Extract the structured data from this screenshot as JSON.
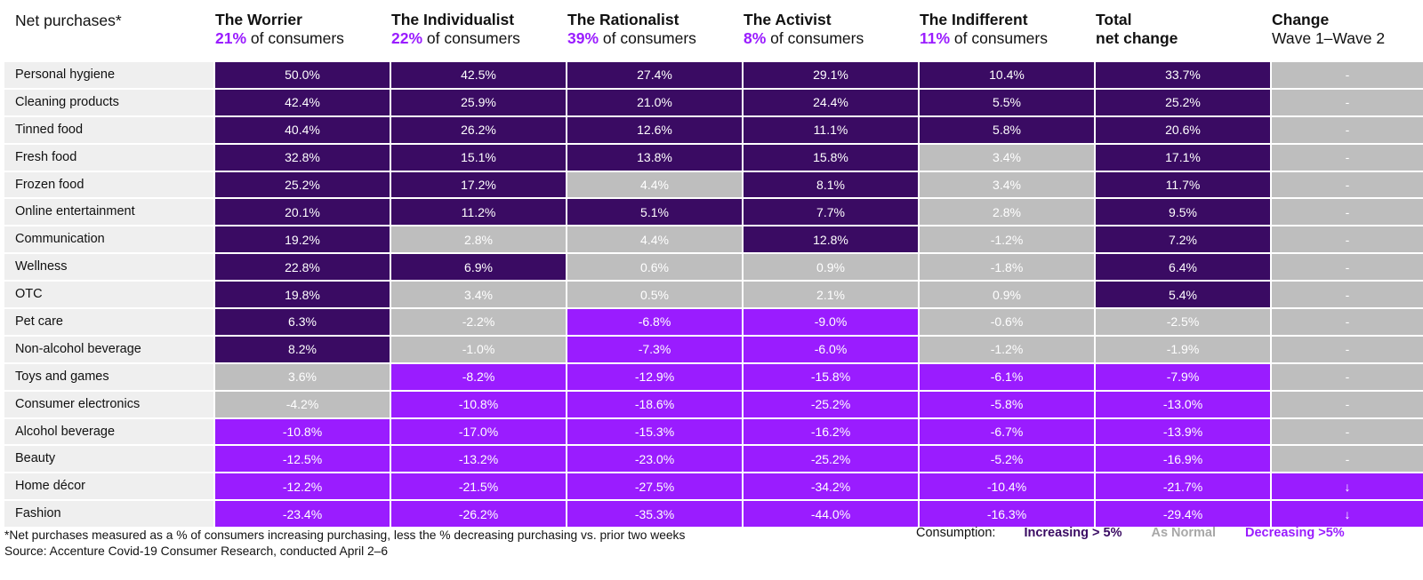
{
  "chart_data": {
    "type": "table",
    "row_header": "Net purchases*",
    "columns": [
      {
        "title": "The Worrier",
        "pct": "21%",
        "sub": " of consumers"
      },
      {
        "title": "The Individualist",
        "pct": "22%",
        "sub": " of consumers"
      },
      {
        "title": "The Rationalist",
        "pct": "39%",
        "sub": " of consumers"
      },
      {
        "title": "The Activist",
        "pct": "8%",
        "sub": " of consumers"
      },
      {
        "title": "The Indifferent",
        "pct": "11%",
        "sub": " of consumers"
      },
      {
        "title": "Total",
        "pct": "",
        "sub": "net change",
        "sub_bold": true
      },
      {
        "title": "Change",
        "pct": "",
        "sub": "Wave 1–Wave 2"
      }
    ],
    "rows": [
      {
        "label": "Personal hygiene",
        "values": [
          "50.0%",
          "42.5%",
          "27.4%",
          "29.1%",
          "10.4%",
          "33.7%",
          "-"
        ],
        "status": [
          "inc",
          "inc",
          "inc",
          "inc",
          "inc",
          "inc",
          "norm"
        ]
      },
      {
        "label": "Cleaning products",
        "values": [
          "42.4%",
          "25.9%",
          "21.0%",
          "24.4%",
          "5.5%",
          "25.2%",
          "-"
        ],
        "status": [
          "inc",
          "inc",
          "inc",
          "inc",
          "inc",
          "inc",
          "norm"
        ]
      },
      {
        "label": "Tinned food",
        "values": [
          "40.4%",
          "26.2%",
          "12.6%",
          "11.1%",
          "5.8%",
          "20.6%",
          "-"
        ],
        "status": [
          "inc",
          "inc",
          "inc",
          "inc",
          "inc",
          "inc",
          "norm"
        ]
      },
      {
        "label": "Fresh food",
        "values": [
          "32.8%",
          "15.1%",
          "13.8%",
          "15.8%",
          "3.4%",
          "17.1%",
          "-"
        ],
        "status": [
          "inc",
          "inc",
          "inc",
          "inc",
          "norm",
          "inc",
          "norm"
        ]
      },
      {
        "label": "Frozen food",
        "values": [
          "25.2%",
          "17.2%",
          "4.4%",
          "8.1%",
          "3.4%",
          "11.7%",
          "-"
        ],
        "status": [
          "inc",
          "inc",
          "norm",
          "inc",
          "norm",
          "inc",
          "norm"
        ]
      },
      {
        "label": "Online entertainment",
        "values": [
          "20.1%",
          "11.2%",
          "5.1%",
          "7.7%",
          "2.8%",
          "9.5%",
          "-"
        ],
        "status": [
          "inc",
          "inc",
          "inc",
          "inc",
          "norm",
          "inc",
          "norm"
        ]
      },
      {
        "label": "Communication",
        "values": [
          "19.2%",
          "2.8%",
          "4.4%",
          "12.8%",
          "-1.2%",
          "7.2%",
          "-"
        ],
        "status": [
          "inc",
          "norm",
          "norm",
          "inc",
          "norm",
          "inc",
          "norm"
        ]
      },
      {
        "label": "Wellness",
        "values": [
          "22.8%",
          "6.9%",
          "0.6%",
          "0.9%",
          "-1.8%",
          "6.4%",
          "-"
        ],
        "status": [
          "inc",
          "inc",
          "norm",
          "norm",
          "norm",
          "inc",
          "norm"
        ]
      },
      {
        "label": "OTC",
        "values": [
          "19.8%",
          "3.4%",
          "0.5%",
          "2.1%",
          "0.9%",
          "5.4%",
          "-"
        ],
        "status": [
          "inc",
          "norm",
          "norm",
          "norm",
          "norm",
          "inc",
          "norm"
        ]
      },
      {
        "label": "Pet care",
        "values": [
          "6.3%",
          "-2.2%",
          "-6.8%",
          "-9.0%",
          "-0.6%",
          "-2.5%",
          "-"
        ],
        "status": [
          "inc",
          "norm",
          "dec",
          "dec",
          "norm",
          "norm",
          "norm"
        ]
      },
      {
        "label": "Non-alcohol beverage",
        "values": [
          "8.2%",
          "-1.0%",
          "-7.3%",
          "-6.0%",
          "-1.2%",
          "-1.9%",
          "-"
        ],
        "status": [
          "inc",
          "norm",
          "dec",
          "dec",
          "norm",
          "norm",
          "norm"
        ]
      },
      {
        "label": "Toys and games",
        "values": [
          "3.6%",
          "-8.2%",
          "-12.9%",
          "-15.8%",
          "-6.1%",
          "-7.9%",
          "-"
        ],
        "status": [
          "norm",
          "dec",
          "dec",
          "dec",
          "dec",
          "dec",
          "norm"
        ]
      },
      {
        "label": "Consumer electronics",
        "values": [
          "-4.2%",
          "-10.8%",
          "-18.6%",
          "-25.2%",
          "-5.8%",
          "-13.0%",
          "-"
        ],
        "status": [
          "norm",
          "dec",
          "dec",
          "dec",
          "dec",
          "dec",
          "norm"
        ]
      },
      {
        "label": "Alcohol beverage",
        "values": [
          "-10.8%",
          "-17.0%",
          "-15.3%",
          "-16.2%",
          "-6.7%",
          "-13.9%",
          "-"
        ],
        "status": [
          "dec",
          "dec",
          "dec",
          "dec",
          "dec",
          "dec",
          "norm"
        ]
      },
      {
        "label": "Beauty",
        "values": [
          "-12.5%",
          "-13.2%",
          "-23.0%",
          "-25.2%",
          "-5.2%",
          "-16.9%",
          "-"
        ],
        "status": [
          "dec",
          "dec",
          "dec",
          "dec",
          "dec",
          "dec",
          "norm"
        ]
      },
      {
        "label": "Home décor",
        "values": [
          "-12.2%",
          "-21.5%",
          "-27.5%",
          "-34.2%",
          "-10.4%",
          "-21.7%",
          "↓"
        ],
        "status": [
          "dec",
          "dec",
          "dec",
          "dec",
          "dec",
          "dec",
          "dec"
        ]
      },
      {
        "label": "Fashion",
        "values": [
          "-23.4%",
          "-26.2%",
          "-35.3%",
          "-44.0%",
          "-16.3%",
          "-29.4%",
          "↓"
        ],
        "status": [
          "dec",
          "dec",
          "dec",
          "dec",
          "dec",
          "dec",
          "dec"
        ]
      }
    ],
    "colors": {
      "inc": "#3a0b63",
      "norm": "#bebebe",
      "dec": "#9a1cff"
    }
  },
  "footnote": {
    "line1": "*Net purchases measured as a % of consumers increasing purchasing, less the % decreasing purchasing vs. prior two weeks",
    "line2": "Source: Accenture Covid-19 Consumer Research, conducted April 2–6"
  },
  "legend": {
    "label": "Consumption:",
    "increasing": "Increasing > 5%",
    "normal": "As Normal",
    "decreasing": "Decreasing >5%"
  }
}
